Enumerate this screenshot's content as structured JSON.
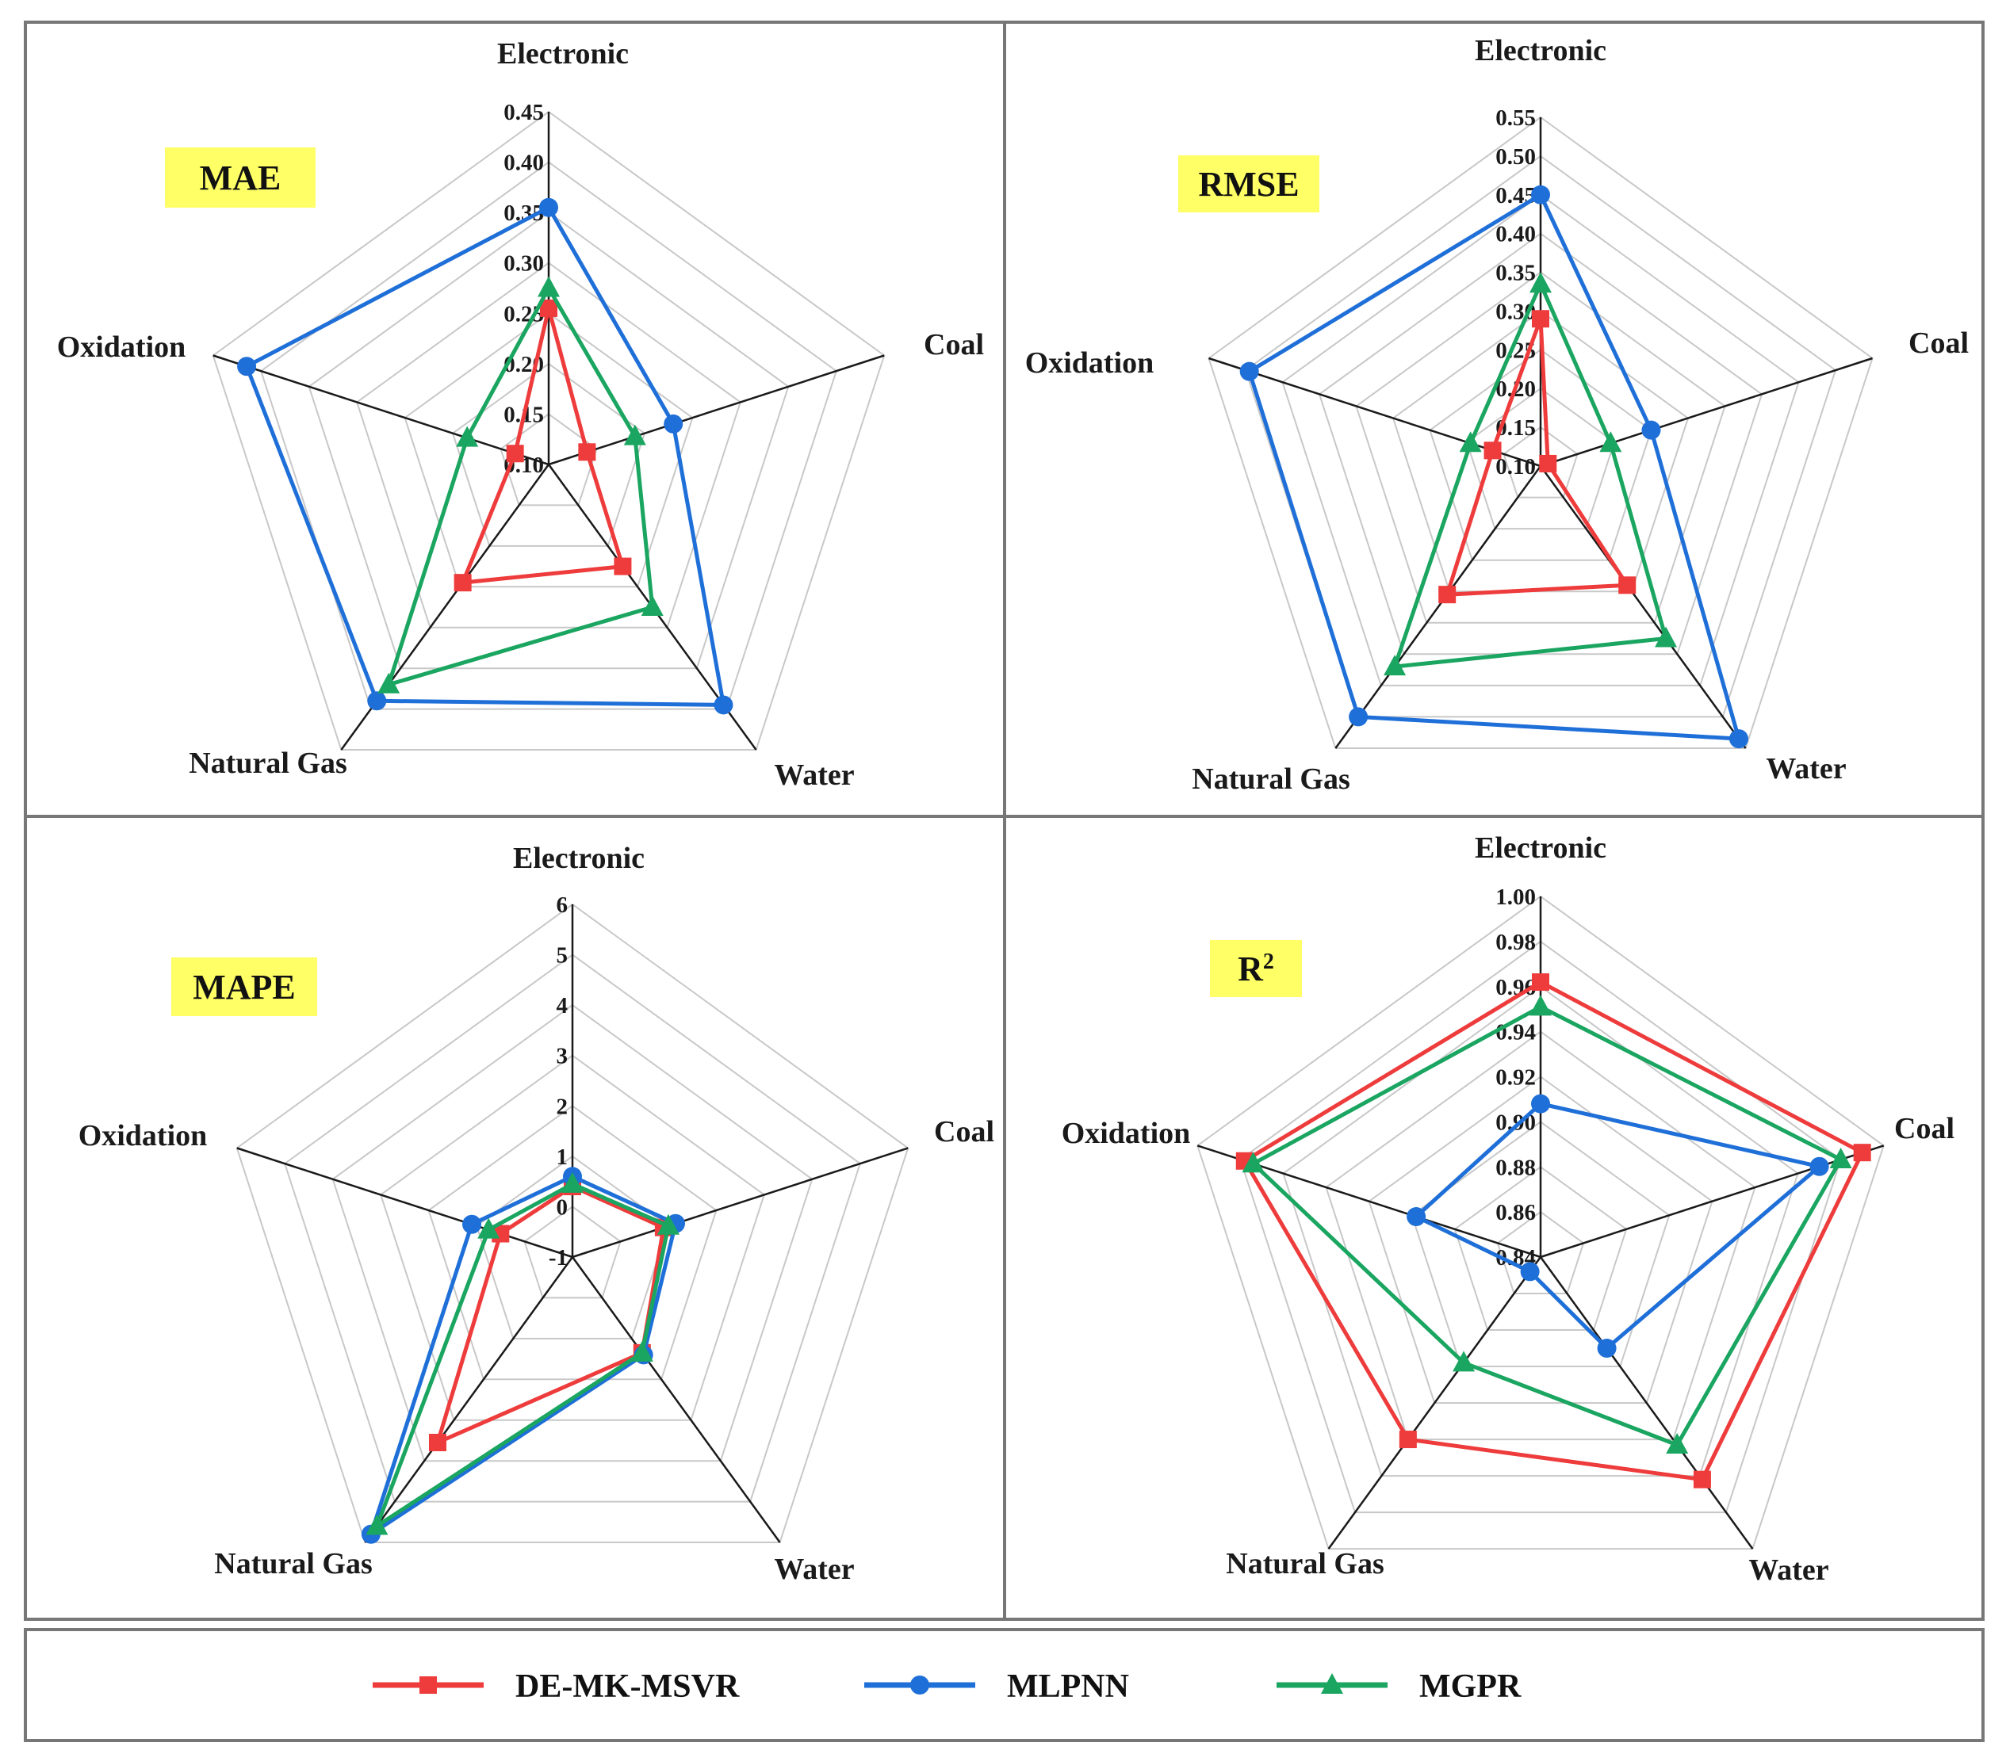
{
  "axes": [
    "Electronic",
    "Coal",
    "Water",
    "Natural Gas",
    "Oxidation"
  ],
  "series_meta": [
    {
      "name": "DE-MK-MSVR",
      "color": "#ee3b3b",
      "marker": "square"
    },
    {
      "name": "MLPNN",
      "color": "#1f6fd8",
      "marker": "circle"
    },
    {
      "name": "MGPR",
      "color": "#1aa560",
      "marker": "triangle"
    }
  ],
  "legend": {
    "items": [
      {
        "label": "DE-MK-MSVR",
        "color": "#ee3b3b",
        "marker": "square"
      },
      {
        "label": "MLPNN",
        "color": "#1f6fd8",
        "marker": "circle"
      },
      {
        "label": "MGPR",
        "color": "#1aa560",
        "marker": "triangle"
      }
    ]
  },
  "colors": {
    "metric_box": "#ffff66",
    "grid": "#c8c8c8",
    "axis_line": "#1a1a1a",
    "frame": "#777777"
  },
  "chart_data": [
    {
      "type": "radar",
      "title": "MAE",
      "title_sup": "",
      "axes": [
        "Electronic",
        "Coal",
        "Water",
        "Natural Gas",
        "Oxidation"
      ],
      "range": [
        0.1,
        0.45
      ],
      "tick_labels": [
        "0.10",
        "0.15",
        "0.20",
        "0.25",
        "0.30",
        "0.35",
        "0.40",
        "0.45"
      ],
      "grid_rings": 7,
      "series": [
        {
          "name": "DE-MK-MSVR",
          "values": [
            0.255,
            0.14,
            0.225,
            0.245,
            0.135
          ]
        },
        {
          "name": "MLPNN",
          "values": [
            0.355,
            0.23,
            0.395,
            0.39,
            0.415
          ]
        },
        {
          "name": "MGPR",
          "values": [
            0.275,
            0.19,
            0.275,
            0.37,
            0.185
          ]
        }
      ]
    },
    {
      "type": "radar",
      "title": "RMSE",
      "title_sup": "",
      "axes": [
        "Electronic",
        "Coal",
        "Water",
        "Natural Gas",
        "Oxidation"
      ],
      "range": [
        0.1,
        0.55
      ],
      "tick_labels": [
        "0.10",
        "0.15",
        "0.20",
        "0.25",
        "0.30",
        "0.35",
        "0.40",
        "0.45",
        "0.50",
        "0.55"
      ],
      "grid_rings": 9,
      "series": [
        {
          "name": "DE-MK-MSVR",
          "values": [
            0.29,
            0.11,
            0.29,
            0.305,
            0.165
          ]
        },
        {
          "name": "MLPNN",
          "values": [
            0.45,
            0.25,
            0.535,
            0.5,
            0.495
          ]
        },
        {
          "name": "MGPR",
          "values": [
            0.335,
            0.195,
            0.375,
            0.42,
            0.195
          ]
        }
      ]
    },
    {
      "type": "radar",
      "title": "MAPE",
      "title_sup": "",
      "axes": [
        "Electronic",
        "Coal",
        "Water",
        "Natural Gas",
        "Oxidation"
      ],
      "range": [
        -1,
        6
      ],
      "tick_labels": [
        "-1",
        "0",
        "1",
        "2",
        "3",
        "4",
        "5",
        "6"
      ],
      "grid_rings": 7,
      "series": [
        {
          "name": "DE-MK-MSVR",
          "values": [
            0.4,
            0.9,
            1.35,
            3.55,
            0.5
          ]
        },
        {
          "name": "MLPNN",
          "values": [
            0.6,
            1.15,
            1.4,
            5.8,
            1.1
          ]
        },
        {
          "name": "MGPR",
          "values": [
            0.45,
            1.0,
            1.35,
            5.6,
            0.75
          ]
        }
      ]
    },
    {
      "type": "radar",
      "title": "R",
      "title_sup": "2",
      "axes": [
        "Electronic",
        "Coal",
        "Water",
        "Natural Gas",
        "Oxidation"
      ],
      "range": [
        0.84,
        1.0
      ],
      "tick_labels": [
        "0.84",
        "0.86",
        "0.88",
        "0.90",
        "0.92",
        "0.94",
        "0.96",
        "0.98",
        "1.00"
      ],
      "grid_rings": 8,
      "series": [
        {
          "name": "DE-MK-MSVR",
          "values": [
            0.962,
            0.99,
            0.962,
            0.94,
            0.978
          ]
        },
        {
          "name": "MLPNN",
          "values": [
            0.908,
            0.97,
            0.89,
            0.848,
            0.898
          ]
        },
        {
          "name": "MGPR",
          "values": [
            0.951,
            0.98,
            0.943,
            0.898,
            0.974
          ]
        }
      ]
    }
  ]
}
